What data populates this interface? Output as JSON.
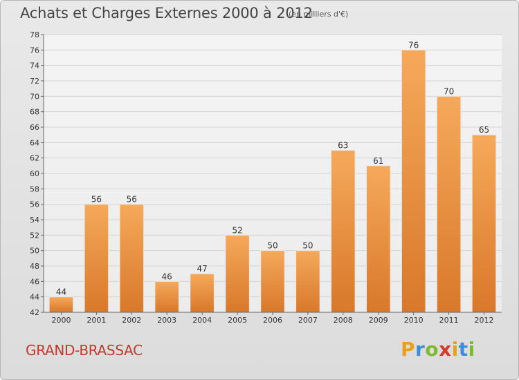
{
  "header": {
    "title": "Achats et Charges Externes 2000 à 2012",
    "unit": "(en milliers d'€)"
  },
  "footer": {
    "commune": "GRAND-BRASSAC",
    "logo_letters": [
      "P",
      "r",
      "o",
      "x",
      "i",
      "t",
      "i"
    ]
  },
  "colors": {
    "bar_top": "#f6a95a",
    "bar_bottom": "#d8782a",
    "commune_text": "#c0392b"
  },
  "chart_data": {
    "type": "bar",
    "title": "Achats et Charges Externes 2000 à 2012",
    "subtitle": "(en milliers d'€)",
    "categories": [
      "2000",
      "2001",
      "2002",
      "2003",
      "2004",
      "2005",
      "2006",
      "2007",
      "2008",
      "2009",
      "2010",
      "2011",
      "2012"
    ],
    "values": [
      44,
      56,
      56,
      46,
      47,
      52,
      50,
      50,
      63,
      61,
      76,
      70,
      65
    ],
    "ylim": [
      42,
      78
    ],
    "yticks": [
      42,
      44,
      46,
      48,
      50,
      52,
      54,
      56,
      58,
      60,
      62,
      64,
      66,
      68,
      70,
      72,
      74,
      76,
      78
    ],
    "grid": true,
    "xlabel": "",
    "ylabel": ""
  }
}
